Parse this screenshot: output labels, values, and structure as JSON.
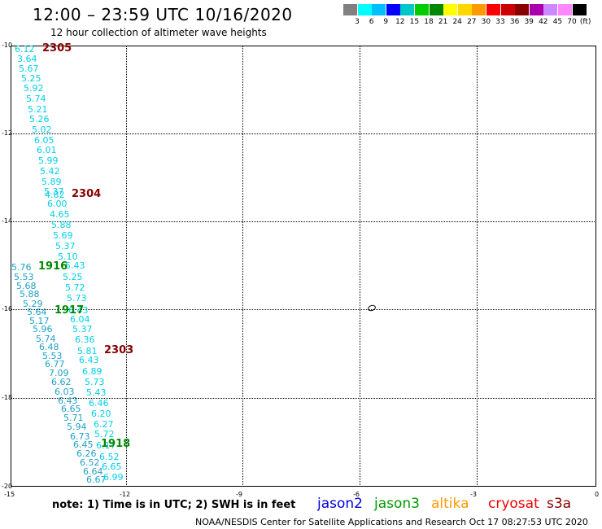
{
  "header": {
    "title": "12:00 – 23:59 UTC 10/16/2020",
    "subtitle": "12 hour collection of altimeter wave heights"
  },
  "legend": {
    "unit": "(ft)",
    "colors": [
      "#808080",
      "#00ffff",
      "#00bfff",
      "#0000ff",
      "#00c8c8",
      "#00cc00",
      "#008800",
      "#ffff00",
      "#ffd700",
      "#ff9900",
      "#ff0000",
      "#cc0000",
      "#880000",
      "#aa00aa",
      "#cc88ff",
      "#ff88ff",
      "#000000"
    ],
    "labels": [
      "3",
      "6",
      "9",
      "12",
      "15",
      "18",
      "21",
      "24",
      "27",
      "30",
      "33",
      "36",
      "39",
      "42",
      "45",
      "70"
    ]
  },
  "map": {
    "lat_labels": [
      "-10",
      "-12",
      "-14",
      "-16",
      "-18",
      "-20"
    ],
    "lon_labels": [
      "-15",
      "-12",
      "-9",
      "-6",
      "-3",
      "0"
    ]
  },
  "passes": [
    {
      "label": "2305",
      "color": "#880000"
    },
    {
      "label": "2304",
      "color": "#880000"
    },
    {
      "label": "1916",
      "color": "#008800"
    },
    {
      "label": "1917",
      "color": "#008800"
    },
    {
      "label": "2303",
      "color": "#880000"
    },
    {
      "label": "1918",
      "color": "#008800"
    }
  ],
  "wave_heights": [
    "6.12",
    "3.64",
    "5.67",
    "5.25",
    "5.92",
    "5.74",
    "5.21",
    "5.26",
    "5.02",
    "6.05",
    "6.01",
    "5.99",
    "5.42",
    "5.89",
    "5.37",
    "4.82",
    "6.00",
    "4.65",
    "5.88",
    "5.69",
    "5.37",
    "5.10",
    "5.43",
    "5.25",
    "5.72",
    "5.73",
    "5.76",
    "5.53",
    "5.68",
    "5.88",
    "5.29",
    "5.64",
    "5.17",
    "5.96",
    "5.74",
    "6.48",
    "5.53",
    "6.77",
    "7.09",
    "6.62",
    "6.03",
    "6.43",
    "6.65",
    "5.71",
    "5.94",
    "6.73",
    "6.45",
    "6.26",
    "6.52",
    "6.64",
    "6.67",
    "6.04",
    "5.37",
    "6.36",
    "5.81",
    "6.43",
    "6.89",
    "5.73",
    "5.43",
    "6.46",
    "6.20",
    "6.27",
    "5.72",
    "6.52",
    "6.65",
    "6.99",
    "6.17",
    "6.43"
  ],
  "footer": {
    "note": "note:  1) Time is in UTC;  2) SWH is in feet",
    "satellites": [
      {
        "name": "jason2",
        "color": "#0000dd"
      },
      {
        "name": "jason3",
        "color": "#009900"
      },
      {
        "name": "altika",
        "color": "#ff9900"
      },
      {
        "name": "cryosat",
        "color": "#ee0000"
      },
      {
        "name": "s3a",
        "color": "#880000"
      }
    ],
    "credit": "NOAA/NESDIS Center for Satellite Applications and Research    Oct 17 08:27:53 UTC 2020"
  }
}
